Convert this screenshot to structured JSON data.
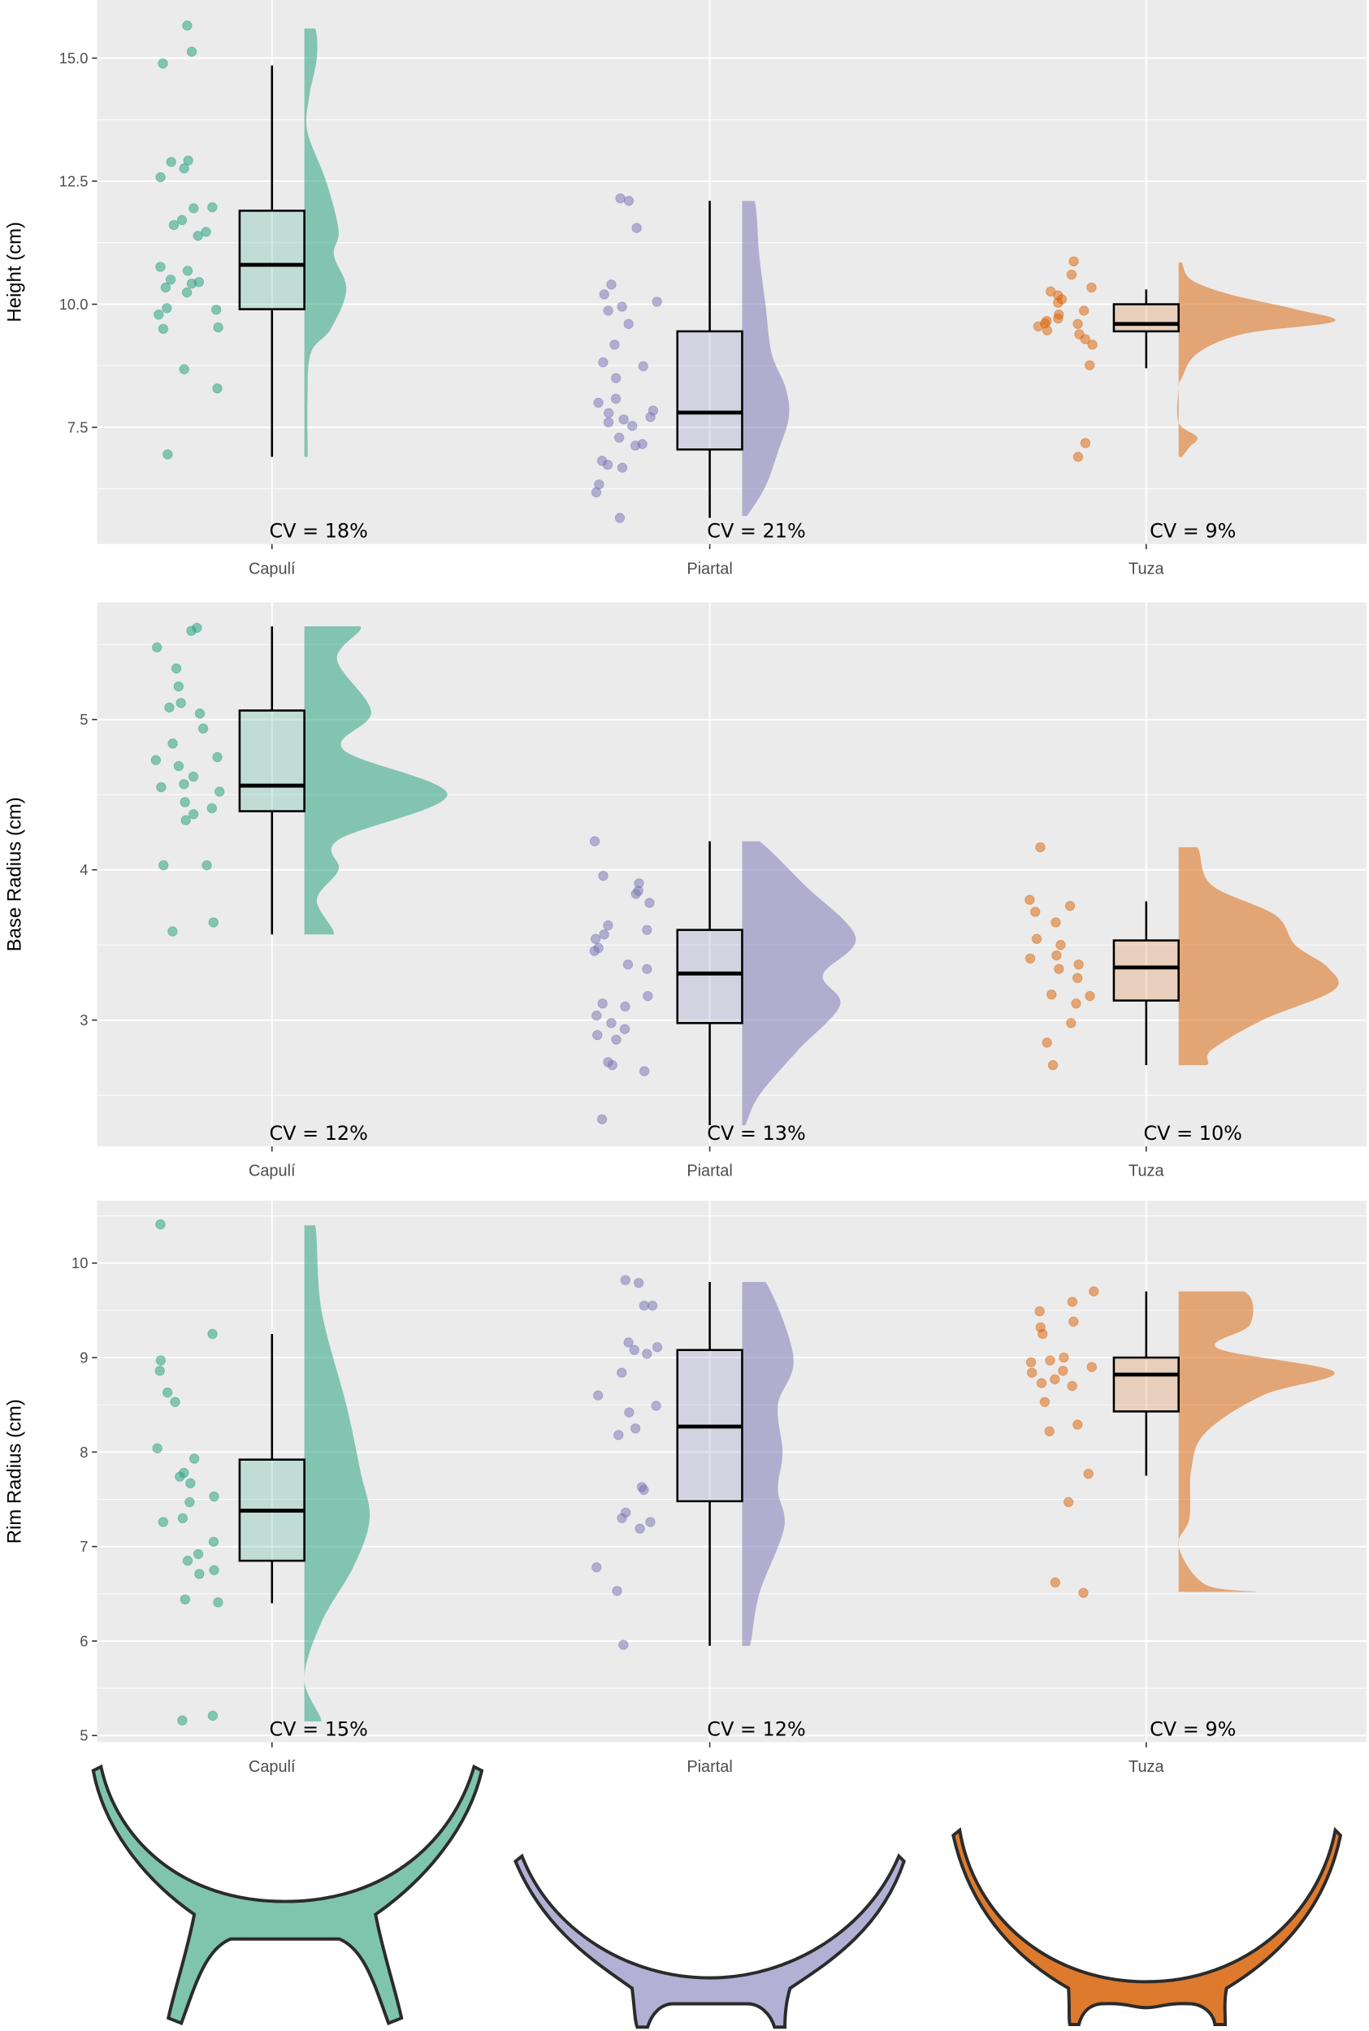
{
  "colors": {
    "Capulí": "#1b9e77",
    "Piartal": "#7570b3",
    "Tuza": "#d95f02",
    "panel_bg": "#ebebeb",
    "grid": "#ffffff"
  },
  "chart_data": [
    {
      "type": "raincloud",
      "ylabel": "Height (cm)",
      "yticks": [
        7.5,
        10.0,
        12.5,
        15.0
      ],
      "ytick_labels": [
        "7.5",
        "10.0",
        "12.5",
        "15.0"
      ],
      "ylim": [
        5.13,
        16.18
      ],
      "categories": [
        "Capulí",
        "Piartal",
        "Tuza"
      ],
      "groups": [
        {
          "name": "Capulí",
          "cv_label": "CV = 18%",
          "box": {
            "lower": 6.9,
            "q1": 9.9,
            "median": 10.8,
            "q3": 11.9,
            "upper": 14.85
          },
          "points": [
            15.66,
            15.13,
            14.89,
            12.89,
            12.76,
            12.92,
            12.58,
            11.97,
            11.95,
            11.71,
            11.61,
            11.47,
            11.39,
            10.76,
            10.68,
            10.5,
            10.45,
            10.34,
            10.42,
            10.24,
            9.92,
            9.79,
            9.89,
            9.53,
            9.5,
            8.68,
            8.29,
            6.95
          ],
          "density": [
            [
              15.6,
              0.07
            ],
            [
              15.0,
              0.08
            ],
            [
              14.2,
              0.03
            ],
            [
              13.5,
              0.02
            ],
            [
              12.5,
              0.14
            ],
            [
              11.5,
              0.22
            ],
            [
              11.0,
              0.19
            ],
            [
              10.3,
              0.27
            ],
            [
              9.5,
              0.17
            ],
            [
              9.0,
              0.04
            ],
            [
              8.0,
              0.02
            ],
            [
              6.9,
              0.02
            ]
          ]
        },
        {
          "name": "Piartal",
          "cv_label": "CV = 21%",
          "box": {
            "lower": 5.66,
            "q1": 7.05,
            "median": 7.8,
            "q3": 9.45,
            "upper": 12.1
          },
          "points": [
            12.15,
            12.1,
            11.55,
            10.4,
            10.2,
            10.05,
            9.95,
            9.87,
            9.6,
            9.18,
            8.82,
            8.74,
            8.5,
            8.08,
            8.0,
            7.84,
            7.79,
            7.71,
            7.66,
            7.6,
            7.53,
            7.29,
            7.16,
            7.13,
            6.82,
            6.74,
            6.68,
            6.34,
            6.18,
            5.66
          ],
          "density": [
            [
              12.1,
              0.08
            ],
            [
              11.0,
              0.11
            ],
            [
              10.0,
              0.15
            ],
            [
              9.0,
              0.19
            ],
            [
              8.3,
              0.28
            ],
            [
              7.7,
              0.3
            ],
            [
              7.0,
              0.23
            ],
            [
              6.3,
              0.15
            ],
            [
              5.7,
              0.03
            ]
          ]
        },
        {
          "name": "Tuza",
          "cv_label": "CV = 9%",
          "box": {
            "lower": 8.7,
            "q1": 9.45,
            "median": 9.6,
            "q3": 10.0,
            "upper": 10.3
          },
          "points": [
            10.87,
            10.6,
            10.34,
            10.26,
            10.18,
            10.1,
            10.03,
            9.87,
            9.79,
            9.71,
            9.66,
            9.61,
            9.6,
            9.55,
            9.47,
            9.39,
            9.29,
            9.18,
            8.76,
            7.18,
            6.9
          ],
          "density": [
            [
              10.85,
              0.02
            ],
            [
              10.5,
              0.08
            ],
            [
              10.2,
              0.33
            ],
            [
              9.9,
              0.75
            ],
            [
              9.65,
              1.0
            ],
            [
              9.4,
              0.42
            ],
            [
              9.0,
              0.12
            ],
            [
              8.5,
              0.02
            ],
            [
              8.3,
              0.0
            ],
            [
              7.6,
              0.0
            ],
            [
              7.3,
              0.12
            ],
            [
              7.1,
              0.07
            ],
            [
              6.9,
              0.02
            ]
          ]
        }
      ]
    },
    {
      "type": "raincloud",
      "ylabel": "Base Radius (cm)",
      "yticks": [
        3,
        4,
        5
      ],
      "ytick_labels": [
        "3",
        "4",
        "5"
      ],
      "ylim": [
        2.16,
        5.78
      ],
      "categories": [
        "Capulí",
        "Piartal",
        "Tuza"
      ],
      "groups": [
        {
          "name": "Capulí",
          "cv_label": "CV = 12%",
          "box": {
            "lower": 3.57,
            "q1": 4.39,
            "median": 4.56,
            "q3": 5.06,
            "upper": 5.62
          },
          "points": [
            5.61,
            5.59,
            5.48,
            5.34,
            5.22,
            5.08,
            5.11,
            5.04,
            4.94,
            4.84,
            4.75,
            4.73,
            4.69,
            4.62,
            4.57,
            4.55,
            4.52,
            4.45,
            4.41,
            4.37,
            4.33,
            4.03,
            4.03,
            3.65,
            3.59
          ],
          "density": [
            [
              5.62,
              0.36
            ],
            [
              5.4,
              0.21
            ],
            [
              5.05,
              0.43
            ],
            [
              4.8,
              0.25
            ],
            [
              4.5,
              0.92
            ],
            [
              4.2,
              0.22
            ],
            [
              4.0,
              0.22
            ],
            [
              3.8,
              0.08
            ],
            [
              3.57,
              0.19
            ]
          ]
        },
        {
          "name": "Piartal",
          "cv_label": "CV = 13%",
          "box": {
            "lower": 2.3,
            "q1": 2.98,
            "median": 3.31,
            "q3": 3.6,
            "upper": 4.19
          },
          "points": [
            4.19,
            3.96,
            3.91,
            3.86,
            3.84,
            3.78,
            3.63,
            3.6,
            3.57,
            3.54,
            3.48,
            3.46,
            3.37,
            3.34,
            3.16,
            3.11,
            3.09,
            3.03,
            2.98,
            2.94,
            2.9,
            2.87,
            2.72,
            2.7,
            2.66,
            2.34
          ],
          "density": [
            [
              4.19,
              0.11
            ],
            [
              3.9,
              0.4
            ],
            [
              3.55,
              0.73
            ],
            [
              3.3,
              0.52
            ],
            [
              3.1,
              0.63
            ],
            [
              2.8,
              0.36
            ],
            [
              2.5,
              0.11
            ],
            [
              2.3,
              0.02
            ]
          ]
        },
        {
          "name": "Tuza",
          "cv_label": "CV = 10%",
          "box": {
            "lower": 2.7,
            "q1": 3.13,
            "median": 3.35,
            "q3": 3.53,
            "upper": 3.79
          },
          "points": [
            4.15,
            3.8,
            3.76,
            3.72,
            3.65,
            3.54,
            3.5,
            3.43,
            3.41,
            3.37,
            3.34,
            3.28,
            3.17,
            3.16,
            3.11,
            2.98,
            2.85,
            2.7
          ],
          "density": [
            [
              4.15,
              0.12
            ],
            [
              3.9,
              0.21
            ],
            [
              3.7,
              0.62
            ],
            [
              3.5,
              0.75
            ],
            [
              3.35,
              0.96
            ],
            [
              3.2,
              1.0
            ],
            [
              3.0,
              0.54
            ],
            [
              2.8,
              0.21
            ],
            [
              2.7,
              0.18
            ]
          ]
        }
      ]
    },
    {
      "type": "raincloud",
      "ylabel": "Rim Radius (cm)",
      "yticks": [
        5,
        6,
        7,
        8,
        9,
        10
      ],
      "ytick_labels": [
        "5",
        "6",
        "7",
        "8",
        "9",
        "10"
      ],
      "ylim": [
        4.93,
        10.66
      ],
      "categories": [
        "Capulí",
        "Piartal",
        "Tuza"
      ],
      "groups": [
        {
          "name": "Capulí",
          "cv_label": "CV = 15%",
          "box": {
            "lower": 6.4,
            "q1": 6.85,
            "median": 7.38,
            "q3": 7.92,
            "upper": 9.25
          },
          "points": [
            10.41,
            9.25,
            8.97,
            8.86,
            8.63,
            8.53,
            8.04,
            7.93,
            7.78,
            7.74,
            7.67,
            7.53,
            7.47,
            7.3,
            7.26,
            7.05,
            6.92,
            6.85,
            6.75,
            6.71,
            6.44,
            6.41,
            5.21,
            5.16
          ],
          "density": [
            [
              10.4,
              0.07
            ],
            [
              9.5,
              0.11
            ],
            [
              8.5,
              0.27
            ],
            [
              7.8,
              0.36
            ],
            [
              7.3,
              0.42
            ],
            [
              6.8,
              0.32
            ],
            [
              6.2,
              0.11
            ],
            [
              5.6,
              0.0
            ],
            [
              5.15,
              0.11
            ]
          ]
        },
        {
          "name": "Piartal",
          "cv_label": "CV = 12%",
          "box": {
            "lower": 5.95,
            "q1": 7.48,
            "median": 8.27,
            "q3": 9.08,
            "upper": 9.8
          },
          "points": [
            9.82,
            9.79,
            9.55,
            9.55,
            9.16,
            9.11,
            9.08,
            9.04,
            8.84,
            8.6,
            8.49,
            8.42,
            8.25,
            8.18,
            7.63,
            7.6,
            7.36,
            7.3,
            7.26,
            7.19,
            6.78,
            6.53,
            5.96
          ],
          "density": [
            [
              9.8,
              0.15
            ],
            [
              9.0,
              0.33
            ],
            [
              8.5,
              0.23
            ],
            [
              8.0,
              0.26
            ],
            [
              7.6,
              0.23
            ],
            [
              7.2,
              0.27
            ],
            [
              6.5,
              0.11
            ],
            [
              5.95,
              0.05
            ]
          ]
        },
        {
          "name": "Tuza",
          "cv_label": "CV = 9%",
          "box": {
            "lower": 7.75,
            "q1": 8.43,
            "median": 8.82,
            "q3": 9.0,
            "upper": 9.7
          },
          "points": [
            9.7,
            9.59,
            9.49,
            9.38,
            9.32,
            9.25,
            9.0,
            8.97,
            8.95,
            8.9,
            8.86,
            8.84,
            8.77,
            8.73,
            8.7,
            8.53,
            8.29,
            8.22,
            7.77,
            7.47,
            6.62,
            6.51
          ],
          "density": [
            [
              9.7,
              0.42
            ],
            [
              9.35,
              0.46
            ],
            [
              9.1,
              0.25
            ],
            [
              8.85,
              1.0
            ],
            [
              8.6,
              0.54
            ],
            [
              8.2,
              0.17
            ],
            [
              7.8,
              0.08
            ],
            [
              7.3,
              0.07
            ],
            [
              7.0,
              0.0
            ],
            [
              6.6,
              0.17
            ],
            [
              6.52,
              0.5
            ]
          ]
        }
      ]
    }
  ],
  "vessels": [
    "Capulí",
    "Piartal",
    "Tuza"
  ]
}
